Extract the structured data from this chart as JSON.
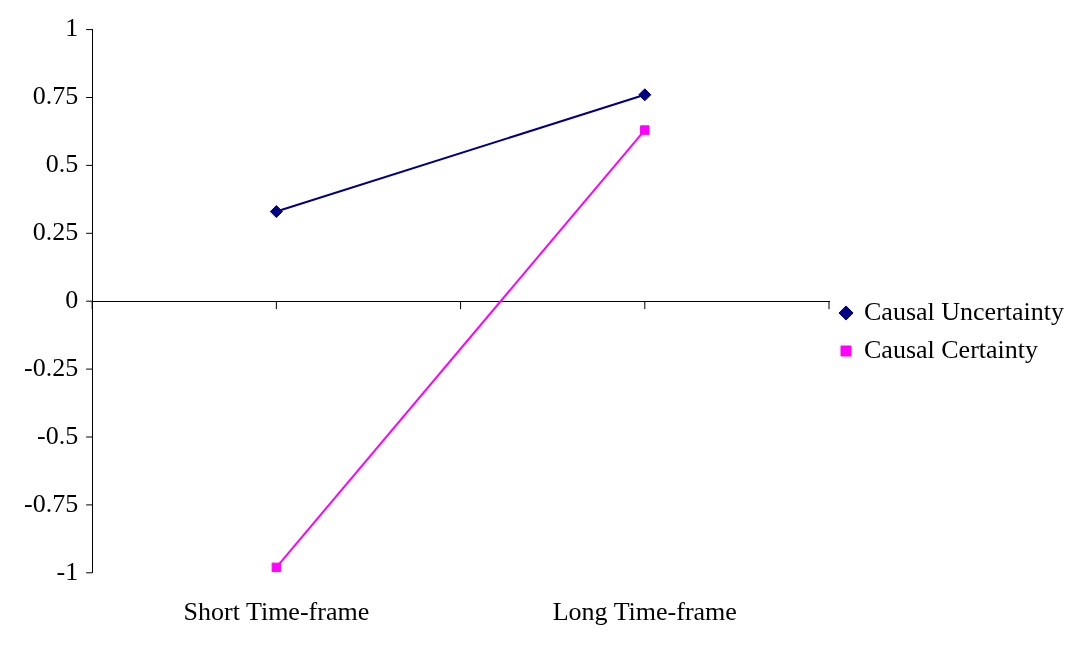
{
  "chart_data": {
    "type": "line",
    "categories": [
      "Short Time-frame",
      "Long Time-frame"
    ],
    "series": [
      {
        "name": "Causal Uncertainty",
        "color": "#000080",
        "values": [
          0.33,
          0.76
        ],
        "marker": "diamond"
      },
      {
        "name": "Causal Certainty",
        "color": "#ff00ff",
        "values": [
          -0.98,
          0.63
        ],
        "marker": "square"
      }
    ],
    "ylim": [
      -1,
      1
    ],
    "yticks": [
      -1,
      -0.75,
      -0.5,
      -0.25,
      0,
      0.25,
      0.5,
      0.75,
      1
    ],
    "legend": "right",
    "line_style": "solid"
  }
}
